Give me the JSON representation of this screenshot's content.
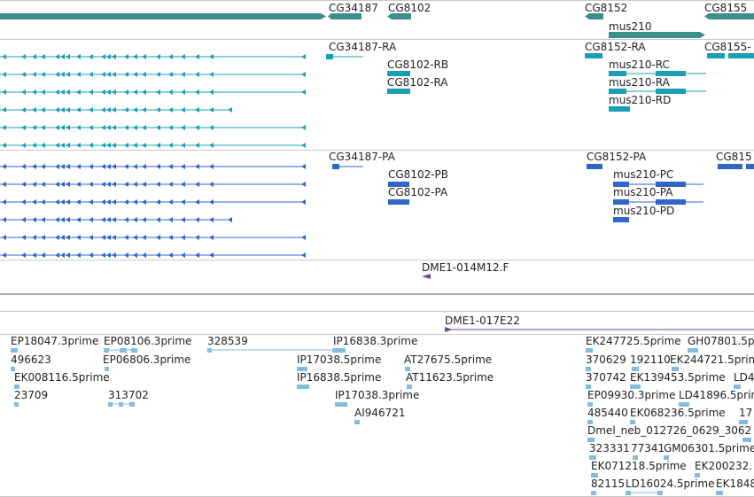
{
  "colors": {
    "genes": "#3a8f8a",
    "rna": "#1aa0b4",
    "protein": "#2f66c8",
    "clone": "#6a4a9a",
    "est": "#82bde0",
    "separator": "#c8c8c8"
  },
  "gene_track": {
    "labels": [
      "CG34187",
      "CG8102",
      "CG8152",
      "mus210",
      "CG8155"
    ]
  },
  "transcript_track": {
    "labels": [
      "CG34187-RA",
      "CG8102-RB",
      "CG8102-RA",
      "CG8152-RA",
      "mus210-RC",
      "mus210-RA",
      "mus210-RD",
      "CG8155-"
    ]
  },
  "protein_track": {
    "labels": [
      "CG34187-PA",
      "CG8102-PB",
      "CG8102-PA",
      "CG8152-PA",
      "mus210-PC",
      "mus210-PA",
      "mus210-PD",
      "CG815"
    ]
  },
  "clone_track_1": {
    "label": "DME1-014M12.F"
  },
  "clone_track_2": {
    "label": "DME1-017E22"
  },
  "est_track": {
    "labels": [
      "EP18047.3prime",
      "EP08106.3prime",
      "328539",
      "IP16838.3prime",
      "EK247725.5prime",
      "GH07801.5p",
      "496623",
      "EP06806.3prime",
      "IP17038.5prime",
      "AT27675.5prime",
      "370629",
      "192110",
      "EK244721.5prime",
      "EK008116.5prime",
      "IP16838.5prime",
      "AT11623.5prime",
      "370742",
      "EK139453.5prime",
      "LD4",
      "23709",
      "313702",
      "IP17038.3prime",
      "EP09930.3prime",
      "LD41896.5prime",
      "AI946721",
      "485440",
      "EK068236.5prime",
      "17",
      "Dmel_neb_012726_0629_3062",
      "323331",
      "77341",
      "GM06301.5prime",
      "EK071218.5prime",
      "EK200232.",
      "82115",
      "LD16024.5prime",
      "EK1848"
    ]
  }
}
